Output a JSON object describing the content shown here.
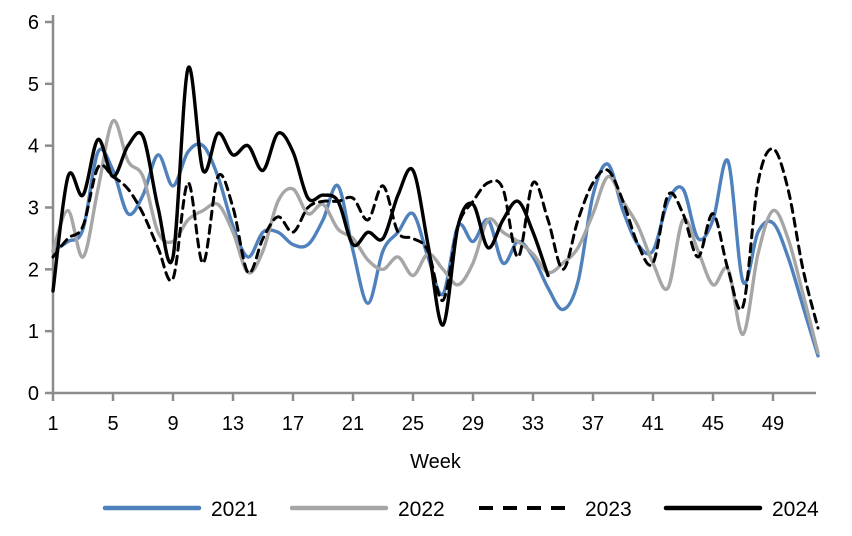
{
  "chart_data": {
    "type": "line",
    "title": "",
    "xlabel": "Week",
    "ylabel": "",
    "xlim": [
      1,
      52
    ],
    "ylim": [
      0,
      6
    ],
    "grid": false,
    "legend_position": "bottom",
    "axis_color": "#8c8c8c",
    "label_color": "#000000",
    "x_ticks": [
      1,
      5,
      9,
      13,
      17,
      21,
      25,
      29,
      33,
      37,
      41,
      45,
      49
    ],
    "y_ticks": [
      0,
      1,
      2,
      3,
      4,
      5,
      6
    ],
    "x": [
      1,
      2,
      3,
      4,
      5,
      6,
      7,
      8,
      9,
      10,
      11,
      12,
      13,
      14,
      15,
      16,
      17,
      18,
      19,
      20,
      21,
      22,
      23,
      24,
      25,
      26,
      27,
      28,
      29,
      30,
      31,
      32,
      33,
      34,
      35,
      36,
      37,
      38,
      39,
      40,
      41,
      42,
      43,
      44,
      45,
      46,
      47,
      48,
      49,
      50,
      51,
      52
    ],
    "series": [
      {
        "name": "2021",
        "color": "#4f81bd",
        "style": "solid",
        "values": [
          2.3,
          2.45,
          2.65,
          3.9,
          3.6,
          2.9,
          3.2,
          3.85,
          3.35,
          3.9,
          4.0,
          3.5,
          2.7,
          2.2,
          2.6,
          2.6,
          2.4,
          2.4,
          2.8,
          3.35,
          2.3,
          1.45,
          2.3,
          2.6,
          2.9,
          2.2,
          1.6,
          2.7,
          2.45,
          2.8,
          2.1,
          2.45,
          2.2,
          1.7,
          1.35,
          1.8,
          3.2,
          3.7,
          2.95,
          2.4,
          2.3,
          3.1,
          3.3,
          2.5,
          2.8,
          3.75,
          1.8,
          2.6,
          2.75,
          2.2,
          1.4,
          0.6
        ]
      },
      {
        "name": "2022",
        "color": "#a6a6a6",
        "style": "solid",
        "values": [
          2.3,
          2.95,
          2.2,
          3.3,
          4.4,
          3.75,
          3.5,
          2.6,
          2.45,
          2.8,
          2.95,
          3.05,
          2.6,
          1.95,
          2.3,
          3.1,
          3.3,
          2.9,
          3.05,
          2.65,
          2.5,
          2.15,
          2.0,
          2.2,
          1.9,
          2.25,
          2.0,
          1.75,
          2.1,
          2.8,
          2.6,
          2.45,
          2.25,
          1.95,
          2.1,
          2.35,
          2.9,
          3.5,
          3.1,
          2.7,
          2.1,
          1.7,
          2.8,
          2.3,
          1.75,
          2.0,
          0.95,
          2.25,
          2.95,
          2.5,
          1.6,
          0.65
        ]
      },
      {
        "name": "2023",
        "color": "#000000",
        "style": "dashed",
        "values": [
          2.2,
          2.5,
          2.7,
          3.65,
          3.5,
          3.3,
          2.9,
          2.35,
          1.85,
          3.4,
          2.1,
          3.5,
          3.0,
          1.95,
          2.5,
          2.85,
          2.6,
          3.0,
          3.1,
          3.1,
          3.15,
          2.8,
          3.35,
          2.6,
          2.5,
          2.3,
          1.5,
          2.7,
          3.1,
          3.4,
          3.3,
          2.2,
          3.4,
          2.8,
          2.0,
          2.8,
          3.4,
          3.6,
          3.1,
          2.4,
          2.1,
          3.2,
          2.9,
          2.2,
          2.9,
          2.0,
          1.4,
          3.4,
          3.95,
          3.3,
          2.0,
          1.05
        ]
      },
      {
        "name": "2024",
        "color": "#000000",
        "style": "solid",
        "values": [
          1.65,
          3.5,
          3.2,
          4.1,
          3.5,
          4.0,
          4.15,
          3.0,
          2.2,
          5.25,
          3.6,
          4.2,
          3.85,
          4.0,
          3.6,
          4.2,
          3.9,
          3.15,
          3.2,
          3.1,
          2.4,
          2.6,
          2.5,
          3.2,
          3.6,
          2.4,
          1.1,
          2.7,
          3.05,
          2.35,
          2.8,
          3.1,
          2.6,
          1.9,
          null,
          null,
          null,
          null,
          null,
          null,
          null,
          null,
          null,
          null,
          null,
          null,
          null,
          null,
          null,
          null,
          null,
          null
        ]
      }
    ]
  }
}
